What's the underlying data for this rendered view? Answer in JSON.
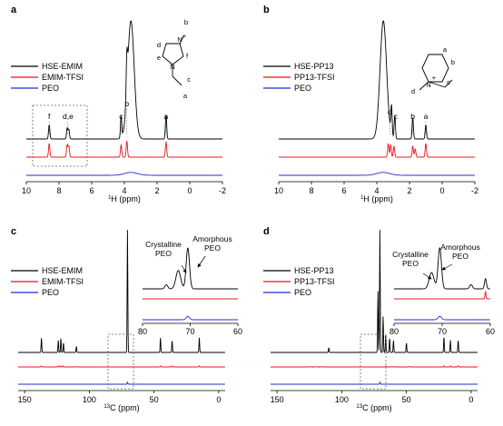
{
  "figure": {
    "colors": {
      "black": "#000000",
      "red": "#e8141e",
      "blue": "#1f2bd6",
      "box": "#666666"
    }
  },
  "chart_data": [
    {
      "panel": "a",
      "type": "line",
      "title": "",
      "xlabel": "1H (ppm)",
      "xlabel_base": "H (ppm)",
      "xlabel_sup": "1",
      "xlim": [
        10,
        -2
      ],
      "x_reversed": true,
      "xticks": [
        10,
        8,
        6,
        4,
        2,
        0,
        -2
      ],
      "legend_placement": "top-left",
      "series": [
        {
          "name": "HSE-EMIM",
          "color": "#000000",
          "peaks": [
            {
              "x": 8.6,
              "h": 0.12
            },
            {
              "x": 7.5,
              "h": 0.09
            },
            {
              "x": 7.4,
              "h": 0.08
            },
            {
              "x": 4.2,
              "h": 0.18
            },
            {
              "x": 3.85,
              "h": 0.3
            },
            {
              "x": 3.6,
              "h": 1.0,
              "w": 0.2
            },
            {
              "x": 1.45,
              "h": 0.2
            }
          ]
        },
        {
          "name": "EMIM-TFSI",
          "color": "#e8141e",
          "peaks": [
            {
              "x": 8.6,
              "h": 0.5
            },
            {
              "x": 7.5,
              "h": 0.45
            },
            {
              "x": 7.4,
              "h": 0.4
            },
            {
              "x": 4.2,
              "h": 0.45
            },
            {
              "x": 3.85,
              "h": 0.6
            },
            {
              "x": 1.45,
              "h": 0.55
            }
          ]
        },
        {
          "name": "PEO",
          "color": "#1f2bd6",
          "peaks": [
            {
              "x": 3.6,
              "h": 0.2,
              "w": 0.4
            }
          ]
        }
      ],
      "annotations": [
        "f",
        "d,e",
        "c",
        "b",
        "a"
      ],
      "molecule_labels": [
        "b",
        "d",
        "f",
        "e",
        "c",
        "a"
      ],
      "molecule_atom_labels": [
        "N",
        "N",
        "+"
      ]
    },
    {
      "panel": "b",
      "type": "line",
      "title": "",
      "xlabel": "1H (ppm)",
      "xlabel_base": "H (ppm)",
      "xlabel_sup": "1",
      "xlim": [
        10,
        -2
      ],
      "x_reversed": true,
      "xticks": [
        10,
        8,
        6,
        4,
        2,
        0,
        -2
      ],
      "legend_placement": "top-left",
      "series": [
        {
          "name": "HSE-PP13",
          "color": "#000000",
          "peaks": [
            {
              "x": 3.6,
              "h": 1.0,
              "w": 0.2
            },
            {
              "x": 3.1,
              "h": 0.25
            },
            {
              "x": 2.9,
              "h": 0.2
            },
            {
              "x": 1.8,
              "h": 0.18
            },
            {
              "x": 1.0,
              "h": 0.12
            }
          ]
        },
        {
          "name": "PP13-TFSI",
          "color": "#e8141e",
          "peaks": [
            {
              "x": 3.3,
              "h": 0.5
            },
            {
              "x": 3.15,
              "h": 0.45
            },
            {
              "x": 2.95,
              "h": 0.4
            },
            {
              "x": 1.8,
              "h": 0.4
            },
            {
              "x": 1.65,
              "h": 0.3
            },
            {
              "x": 1.0,
              "h": 0.5
            }
          ]
        },
        {
          "name": "PEO",
          "color": "#1f2bd6",
          "peaks": [
            {
              "x": 3.6,
              "h": 0.2,
              "w": 0.4
            }
          ]
        }
      ],
      "annotations": [
        "d",
        "c",
        "b",
        "a"
      ],
      "molecule_labels": [
        "a",
        "b",
        "d",
        "c"
      ],
      "molecule_atom_labels": [
        "N",
        "+"
      ]
    },
    {
      "panel": "c",
      "type": "line",
      "title": "",
      "xlabel": "13C (ppm)",
      "xlabel_base": "C (ppm)",
      "xlabel_sup": "13",
      "xlim": [
        155,
        -5
      ],
      "x_reversed": true,
      "xticks": [
        150,
        100,
        50,
        0
      ],
      "legend_placement": "left",
      "series": [
        {
          "name": "HSE-EMIM",
          "color": "#000000",
          "peaks": [
            {
              "x": 137,
              "h": 0.12
            },
            {
              "x": 124,
              "h": 0.1
            },
            {
              "x": 122,
              "h": 0.12
            },
            {
              "x": 120,
              "h": 0.08
            },
            {
              "x": 110,
              "h": 0.05
            },
            {
              "x": 70.5,
              "h": 1.0
            },
            {
              "x": 45,
              "h": 0.12
            },
            {
              "x": 36,
              "h": 0.1
            },
            {
              "x": 15,
              "h": 0.12
            }
          ]
        },
        {
          "name": "EMIM-TFSI",
          "color": "#e8141e",
          "peaks": [
            {
              "x": 137,
              "h": 0.12
            },
            {
              "x": 124,
              "h": 0.12
            },
            {
              "x": 122,
              "h": 0.14
            },
            {
              "x": 120,
              "h": 0.12
            },
            {
              "x": 110,
              "h": 0.05
            },
            {
              "x": 45,
              "h": 0.13
            },
            {
              "x": 36,
              "h": 0.12
            },
            {
              "x": 15,
              "h": 0.13
            }
          ]
        },
        {
          "name": "PEO",
          "color": "#1f2bd6",
          "peaks": [
            {
              "x": 70.5,
              "h": 0.15
            }
          ]
        }
      ],
      "inset": {
        "xlim": [
          80,
          60
        ],
        "xticks": [
          80,
          70,
          60
        ],
        "labels": [
          "Crystalline PEO",
          "Amorphous PEO"
        ],
        "label_lines": [
          [
            "Crystalline",
            "PEO"
          ],
          [
            "Amorphous",
            "PEO"
          ]
        ]
      }
    },
    {
      "panel": "d",
      "type": "line",
      "title": "",
      "xlabel": "13C (ppm)",
      "xlabel_base": "C (ppm)",
      "xlabel_sup": "13",
      "xlim": [
        155,
        -5
      ],
      "x_reversed": true,
      "xticks": [
        150,
        100,
        50,
        0
      ],
      "legend_placement": "left",
      "series": [
        {
          "name": "HSE-PP13",
          "color": "#000000",
          "peaks": [
            {
              "x": 110,
              "h": 0.04
            },
            {
              "x": 72,
              "h": 0.5
            },
            {
              "x": 70.5,
              "h": 1.0
            },
            {
              "x": 68,
              "h": 0.3
            },
            {
              "x": 66,
              "h": 0.15
            },
            {
              "x": 63,
              "h": 0.12
            },
            {
              "x": 60,
              "h": 0.1
            },
            {
              "x": 50,
              "h": 0.08
            },
            {
              "x": 21,
              "h": 0.13
            },
            {
              "x": 16,
              "h": 0.1
            },
            {
              "x": 10,
              "h": 0.1
            }
          ]
        },
        {
          "name": "PP13-TFSI",
          "color": "#e8141e",
          "peaks": [
            {
              "x": 124,
              "h": 0.05
            },
            {
              "x": 120,
              "h": 0.04
            },
            {
              "x": 116,
              "h": 0.04
            },
            {
              "x": 66,
              "h": 0.08
            },
            {
              "x": 61,
              "h": 0.06
            },
            {
              "x": 48,
              "h": 0.06
            },
            {
              "x": 21,
              "h": 0.13
            },
            {
              "x": 16,
              "h": 0.12
            },
            {
              "x": 10,
              "h": 0.12
            }
          ]
        },
        {
          "name": "PEO",
          "color": "#1f2bd6",
          "peaks": [
            {
              "x": 70.5,
              "h": 0.15
            }
          ]
        }
      ],
      "inset": {
        "xlim": [
          80,
          60
        ],
        "xticks": [
          80,
          70,
          60
        ],
        "labels": [
          "Crystalline PEO",
          "Amorphous PEO"
        ],
        "label_lines": [
          [
            "Crystalline",
            "PEO"
          ],
          [
            "Amorphous",
            "PEO"
          ]
        ]
      }
    }
  ]
}
